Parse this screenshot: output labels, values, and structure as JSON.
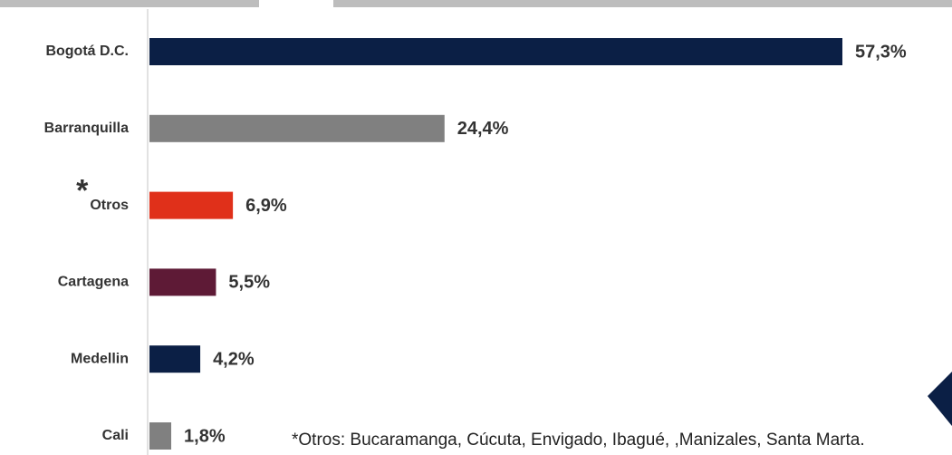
{
  "chart_data": {
    "type": "bar",
    "orientation": "horizontal",
    "categories": [
      "Bogotá D.C.",
      "Barranquilla",
      "Otros",
      "Cartagena",
      "Medellin",
      "Cali"
    ],
    "values": [
      57.3,
      24.4,
      6.9,
      5.5,
      4.2,
      1.8
    ],
    "value_labels": [
      "57,3%",
      "24,4%",
      "6,9%",
      "5,5%",
      "4,2%",
      "1,8%"
    ],
    "colors": [
      "#0b1f45",
      "#808080",
      "#e0301a",
      "#5e1a36",
      "#0b1f45",
      "#808080"
    ],
    "annotations": [
      "*",
      "*Otros: Bucaramanga, Cúcuta, Envigado, Ibagué, ,Manizales, Santa Marta."
    ]
  }
}
